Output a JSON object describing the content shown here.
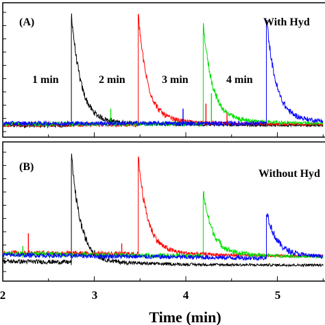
{
  "chart_data": [
    {
      "panel_label": "(A)",
      "condition_label": "With Hyd",
      "type": "line",
      "x_unit": "min",
      "xlim": [
        2.0,
        5.5
      ],
      "ylim": [
        0,
        1
      ],
      "y_ticks_labeled": false,
      "annotations": [
        "1 min",
        "2 min",
        "3 min",
        "4 min"
      ],
      "series": [
        {
          "color": "#000000",
          "peak_x": 2.75,
          "peak_y": 0.88,
          "baseline": 0.05,
          "spikes": []
        },
        {
          "color": "#ff0000",
          "peak_x": 3.48,
          "peak_y": 0.87,
          "baseline": 0.055,
          "spikes": [
            {
              "x": 4.22,
              "y": 0.22
            },
            {
              "x": 4.45,
              "y": 0.15
            }
          ]
        },
        {
          "color": "#00e000",
          "peak_x": 4.19,
          "peak_y": 0.8,
          "baseline": 0.06,
          "spikes": [
            {
              "x": 3.18,
              "y": 0.18
            },
            {
              "x": 4.28,
              "y": 0.3
            },
            {
              "x": 4.7,
              "y": 0.1
            }
          ]
        },
        {
          "color": "#0000ff",
          "peak_x": 4.88,
          "peak_y": 0.86,
          "baseline": 0.065,
          "spikes": [
            {
              "x": 3.97,
              "y": 0.18
            },
            {
              "x": 2.65,
              "y": 0.05
            }
          ]
        }
      ]
    },
    {
      "panel_label": "(B)",
      "condition_label": "Without Hyd",
      "type": "line",
      "x_unit": "min",
      "xlim": [
        2.0,
        5.5
      ],
      "ylim": [
        0,
        1
      ],
      "y_ticks_labeled": false,
      "annotations": [],
      "series": [
        {
          "color": "#000000",
          "peak_x": 2.75,
          "peak_y": 0.86,
          "baseline": 0.05,
          "spikes": []
        },
        {
          "color": "#ff0000",
          "peak_x": 3.48,
          "peak_y": 0.85,
          "baseline": 0.12,
          "spikes": [
            {
              "x": 2.28,
              "y": 0.3
            },
            {
              "x": 3.3,
              "y": 0.22
            }
          ]
        },
        {
          "color": "#00e000",
          "peak_x": 4.19,
          "peak_y": 0.58,
          "baseline": 0.11,
          "spikes": [
            {
              "x": 2.22,
              "y": 0.2
            },
            {
              "x": 4.7,
              "y": 0.14
            }
          ]
        },
        {
          "color": "#0000ff",
          "peak_x": 4.88,
          "peak_y": 0.44,
          "baseline": 0.1,
          "spikes": [
            {
              "x": 4.05,
              "y": 0.12
            }
          ]
        }
      ]
    }
  ],
  "x_axis": {
    "label": "Time (min)",
    "tick_labels": [
      "2",
      "3",
      "4",
      "5"
    ]
  }
}
